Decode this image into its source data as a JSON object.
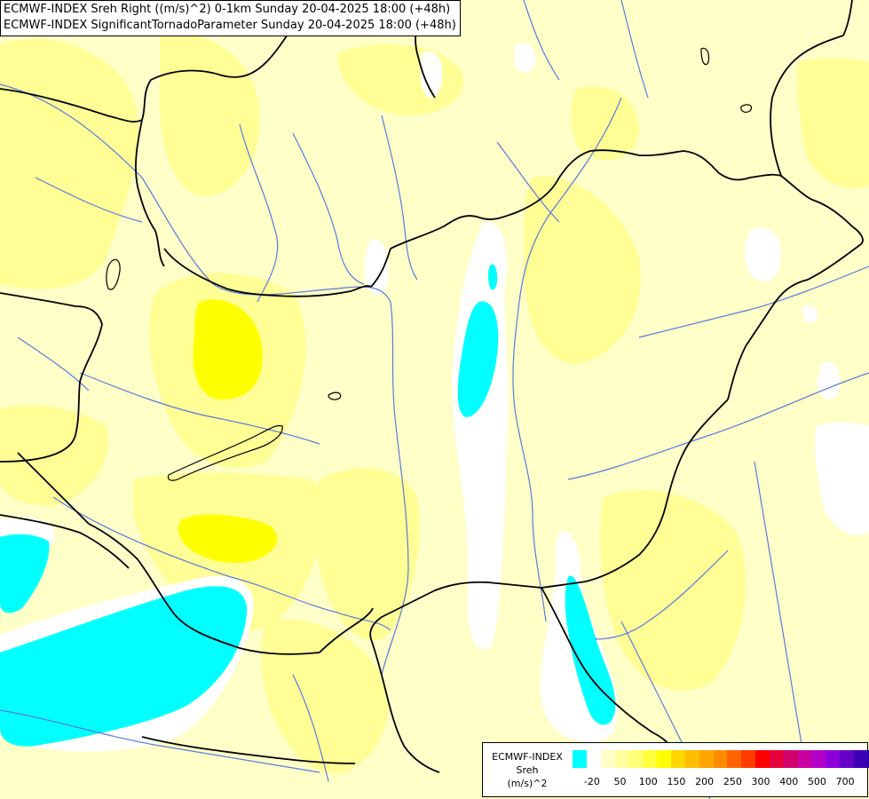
{
  "header": {
    "line1": "ECMWF-INDEX Sreh Right ((m/s)^2) 0-1km Sunday 20-04-2025 18:00 (+48h)",
    "line2": "ECMWF-INDEX SignificantTornadoParameter Sunday 20-04-2025 18:00 (+48h)"
  },
  "legend": {
    "title": "ECMWF-INDEX",
    "variable": "Sreh",
    "unit": "(m/s)^2",
    "colors": [
      "#00ffff",
      "#ffffff",
      "#ffffc8",
      "#ffffa0",
      "#ffff78",
      "#ffff3c",
      "#ffff00",
      "#ffd700",
      "#ffbe00",
      "#ffa500",
      "#ff8c00",
      "#ff6400",
      "#ff3c00",
      "#ff0000",
      "#e6003c",
      "#d2006e",
      "#c800a0",
      "#b400c8",
      "#8c00dc",
      "#6400c8",
      "#3c00b4",
      "#1e0096",
      "#000080"
    ],
    "ticks": [
      "-20",
      "50",
      "100",
      "150",
      "200",
      "250",
      "300",
      "400",
      "500",
      "700"
    ]
  },
  "map": {
    "field_colors": {
      "background": "#ffffc8",
      "light_yellow": "#ffff96",
      "yellow": "#ffff00",
      "white": "#ffffff",
      "cyan": "#00ffff"
    },
    "line_colors": {
      "border": "#000000",
      "river": "#5a7adc"
    }
  }
}
